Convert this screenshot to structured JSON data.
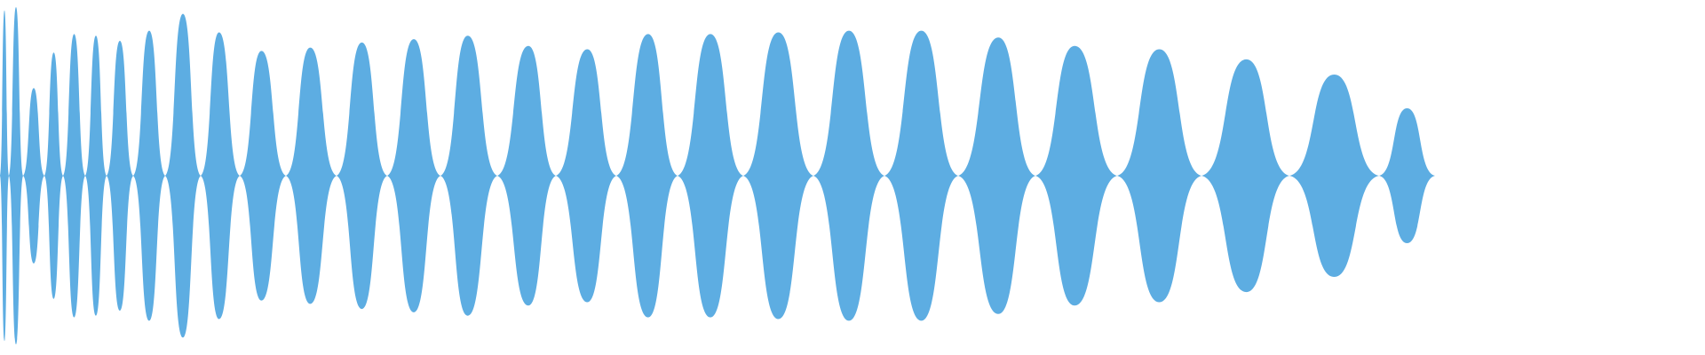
{
  "waveform": {
    "fill_color": "#5DADE2",
    "background_color": "#FFFFFF",
    "lobes": [
      {
        "amp": 0.98,
        "peak": 0.5
      },
      {
        "amp": 1.0,
        "peak": 0.5
      },
      {
        "amp": 0.52,
        "peak": 0.5
      },
      {
        "amp": 0.73,
        "peak": 0.5
      },
      {
        "amp": 0.84,
        "peak": 0.5
      },
      {
        "amp": 0.83,
        "peak": 0.5
      },
      {
        "amp": 0.8,
        "peak": 0.5
      },
      {
        "amp": 0.86,
        "peak": 0.5
      },
      {
        "amp": 0.96,
        "peak": 0.5
      },
      {
        "amp": 0.85,
        "peak": 0.47
      },
      {
        "amp": 0.74,
        "peak": 0.47
      },
      {
        "amp": 0.76,
        "peak": 0.48
      },
      {
        "amp": 0.79,
        "peak": 0.5
      },
      {
        "amp": 0.81,
        "peak": 0.5
      },
      {
        "amp": 0.83,
        "peak": 0.48
      },
      {
        "amp": 0.77,
        "peak": 0.53
      },
      {
        "amp": 0.75,
        "peak": 0.52
      },
      {
        "amp": 0.84,
        "peak": 0.52
      },
      {
        "amp": 0.84,
        "peak": 0.5
      },
      {
        "amp": 0.85,
        "peak": 0.5
      },
      {
        "amp": 0.86,
        "peak": 0.5
      },
      {
        "amp": 0.86,
        "peak": 0.5
      },
      {
        "amp": 0.82,
        "peak": 0.52
      },
      {
        "amp": 0.77,
        "peak": 0.48
      },
      {
        "amp": 0.75,
        "peak": 0.5
      },
      {
        "amp": 0.69,
        "peak": 0.51
      },
      {
        "amp": 0.6,
        "peak": 0.5
      },
      {
        "amp": 0.4,
        "peak": 0.5
      }
    ]
  }
}
